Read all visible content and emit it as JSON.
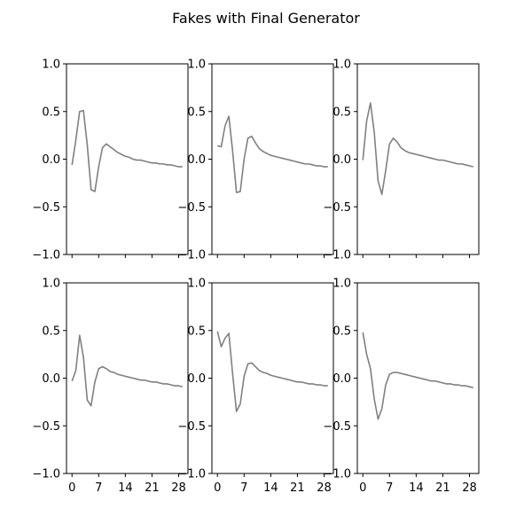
{
  "figure": {
    "title": "Fakes with Final Generator"
  },
  "chart_data": [
    {
      "type": "line",
      "ylim": [
        -1.0,
        1.0
      ],
      "xlim": [
        -1.45,
        30.45
      ],
      "yticks": [
        "1.0",
        "0.5",
        "0.0",
        "−0.5",
        "−1.0"
      ],
      "ytick_values": [
        1.0,
        0.5,
        0.0,
        -0.5,
        -1.0
      ],
      "xtick_values": [
        0,
        7,
        14,
        21,
        28
      ],
      "xticks": [
        "",
        "",
        "",
        "",
        ""
      ],
      "line_color": "#808080",
      "x": [
        0,
        1,
        2,
        3,
        4,
        5,
        6,
        7,
        8,
        9,
        10,
        11,
        12,
        13,
        14,
        15,
        16,
        17,
        18,
        19,
        20,
        21,
        22,
        23,
        24,
        25,
        26,
        27,
        28,
        29
      ],
      "values": [
        -0.06,
        0.2,
        0.5,
        0.51,
        0.15,
        -0.32,
        -0.34,
        -0.08,
        0.12,
        0.16,
        0.13,
        0.1,
        0.07,
        0.05,
        0.03,
        0.02,
        0.0,
        -0.01,
        -0.01,
        -0.02,
        -0.03,
        -0.04,
        -0.04,
        -0.05,
        -0.05,
        -0.06,
        -0.06,
        -0.07,
        -0.08,
        -0.08
      ]
    },
    {
      "type": "line",
      "ylim": [
        -1.0,
        1.0
      ],
      "xlim": [
        -1.45,
        30.45
      ],
      "yticks": [
        "1.0",
        "0.5",
        "0.0",
        "−0.5",
        "−1.0"
      ],
      "ytick_values": [
        1.0,
        0.5,
        0.0,
        -0.5,
        -1.0
      ],
      "xtick_values": [
        0,
        7,
        14,
        21,
        28
      ],
      "xticks": [
        "",
        "",
        "",
        "",
        ""
      ],
      "line_color": "#808080",
      "x": [
        0,
        1,
        2,
        3,
        4,
        5,
        6,
        7,
        8,
        9,
        10,
        11,
        12,
        13,
        14,
        15,
        16,
        17,
        18,
        19,
        20,
        21,
        22,
        23,
        24,
        25,
        26,
        27,
        28,
        29
      ],
      "values": [
        0.14,
        0.13,
        0.35,
        0.45,
        0.08,
        -0.35,
        -0.34,
        0.0,
        0.22,
        0.24,
        0.17,
        0.11,
        0.08,
        0.06,
        0.04,
        0.03,
        0.02,
        0.01,
        0.0,
        -0.01,
        -0.02,
        -0.03,
        -0.04,
        -0.05,
        -0.05,
        -0.06,
        -0.07,
        -0.07,
        -0.08,
        -0.08
      ]
    },
    {
      "type": "line",
      "ylim": [
        -1.0,
        1.0
      ],
      "xlim": [
        -1.45,
        30.45
      ],
      "yticks": [
        "1.0",
        "0.5",
        "0.0",
        "−0.5",
        "−1.0"
      ],
      "ytick_values": [
        1.0,
        0.5,
        0.0,
        -0.5,
        -1.0
      ],
      "xtick_values": [
        0,
        7,
        14,
        21,
        28
      ],
      "xticks": [
        "",
        "",
        "",
        "",
        ""
      ],
      "line_color": "#808080",
      "x": [
        0,
        1,
        2,
        3,
        4,
        5,
        6,
        7,
        8,
        9,
        10,
        11,
        12,
        13,
        14,
        15,
        16,
        17,
        18,
        19,
        20,
        21,
        22,
        23,
        24,
        25,
        26,
        27,
        28,
        29
      ],
      "values": [
        -0.01,
        0.4,
        0.59,
        0.28,
        -0.23,
        -0.37,
        -0.12,
        0.16,
        0.22,
        0.18,
        0.12,
        0.09,
        0.07,
        0.06,
        0.05,
        0.04,
        0.03,
        0.02,
        0.01,
        0.0,
        -0.01,
        -0.01,
        -0.02,
        -0.03,
        -0.04,
        -0.05,
        -0.05,
        -0.06,
        -0.07,
        -0.08
      ]
    },
    {
      "type": "line",
      "ylim": [
        -1.0,
        1.0
      ],
      "xlim": [
        -1.45,
        30.45
      ],
      "yticks": [
        "1.0",
        "0.5",
        "0.0",
        "−0.5",
        "−1.0"
      ],
      "ytick_values": [
        1.0,
        0.5,
        0.0,
        -0.5,
        -1.0
      ],
      "xtick_values": [
        0,
        7,
        14,
        21,
        28
      ],
      "xticks": [
        "0",
        "7",
        "14",
        "21",
        "28"
      ],
      "line_color": "#808080",
      "x": [
        0,
        1,
        2,
        3,
        4,
        5,
        6,
        7,
        8,
        9,
        10,
        11,
        12,
        13,
        14,
        15,
        16,
        17,
        18,
        19,
        20,
        21,
        22,
        23,
        24,
        25,
        26,
        27,
        28,
        29
      ],
      "values": [
        -0.03,
        0.08,
        0.45,
        0.22,
        -0.23,
        -0.29,
        -0.04,
        0.1,
        0.12,
        0.1,
        0.07,
        0.06,
        0.04,
        0.03,
        0.02,
        0.01,
        0.0,
        -0.01,
        -0.02,
        -0.02,
        -0.03,
        -0.04,
        -0.04,
        -0.05,
        -0.06,
        -0.06,
        -0.07,
        -0.08,
        -0.08,
        -0.09
      ]
    },
    {
      "type": "line",
      "ylim": [
        -1.0,
        1.0
      ],
      "xlim": [
        -1.45,
        30.45
      ],
      "yticks": [
        "1.0",
        "0.5",
        "0.0",
        "−0.5",
        "−1.0"
      ],
      "ytick_values": [
        1.0,
        0.5,
        0.0,
        -0.5,
        -1.0
      ],
      "xtick_values": [
        0,
        7,
        14,
        21,
        28
      ],
      "xticks": [
        "0",
        "7",
        "14",
        "21",
        "28"
      ],
      "line_color": "#808080",
      "x": [
        0,
        1,
        2,
        3,
        4,
        5,
        6,
        7,
        8,
        9,
        10,
        11,
        12,
        13,
        14,
        15,
        16,
        17,
        18,
        19,
        20,
        21,
        22,
        23,
        24,
        25,
        26,
        27,
        28,
        29
      ],
      "values": [
        0.49,
        0.33,
        0.42,
        0.47,
        0.04,
        -0.35,
        -0.27,
        0.02,
        0.15,
        0.16,
        0.12,
        0.08,
        0.06,
        0.05,
        0.03,
        0.02,
        0.01,
        0.0,
        -0.01,
        -0.02,
        -0.03,
        -0.04,
        -0.04,
        -0.05,
        -0.06,
        -0.06,
        -0.07,
        -0.07,
        -0.08,
        -0.08
      ]
    },
    {
      "type": "line",
      "ylim": [
        -1.0,
        1.0
      ],
      "xlim": [
        -1.45,
        30.45
      ],
      "yticks": [
        "1.0",
        "0.5",
        "0.0",
        "−0.5",
        "−1.0"
      ],
      "ytick_values": [
        1.0,
        0.5,
        0.0,
        -0.5,
        -1.0
      ],
      "xtick_values": [
        0,
        7,
        14,
        21,
        28
      ],
      "xticks": [
        "0",
        "7",
        "14",
        "21",
        "28"
      ],
      "line_color": "#808080",
      "x": [
        0,
        1,
        2,
        3,
        4,
        5,
        6,
        7,
        8,
        9,
        10,
        11,
        12,
        13,
        14,
        15,
        16,
        17,
        18,
        19,
        20,
        21,
        22,
        23,
        24,
        25,
        26,
        27,
        28,
        29
      ],
      "values": [
        0.48,
        0.25,
        0.1,
        -0.22,
        -0.43,
        -0.32,
        -0.07,
        0.04,
        0.06,
        0.06,
        0.05,
        0.04,
        0.03,
        0.02,
        0.01,
        0.0,
        -0.01,
        -0.02,
        -0.03,
        -0.03,
        -0.04,
        -0.05,
        -0.06,
        -0.06,
        -0.07,
        -0.07,
        -0.08,
        -0.08,
        -0.09,
        -0.1
      ]
    }
  ]
}
